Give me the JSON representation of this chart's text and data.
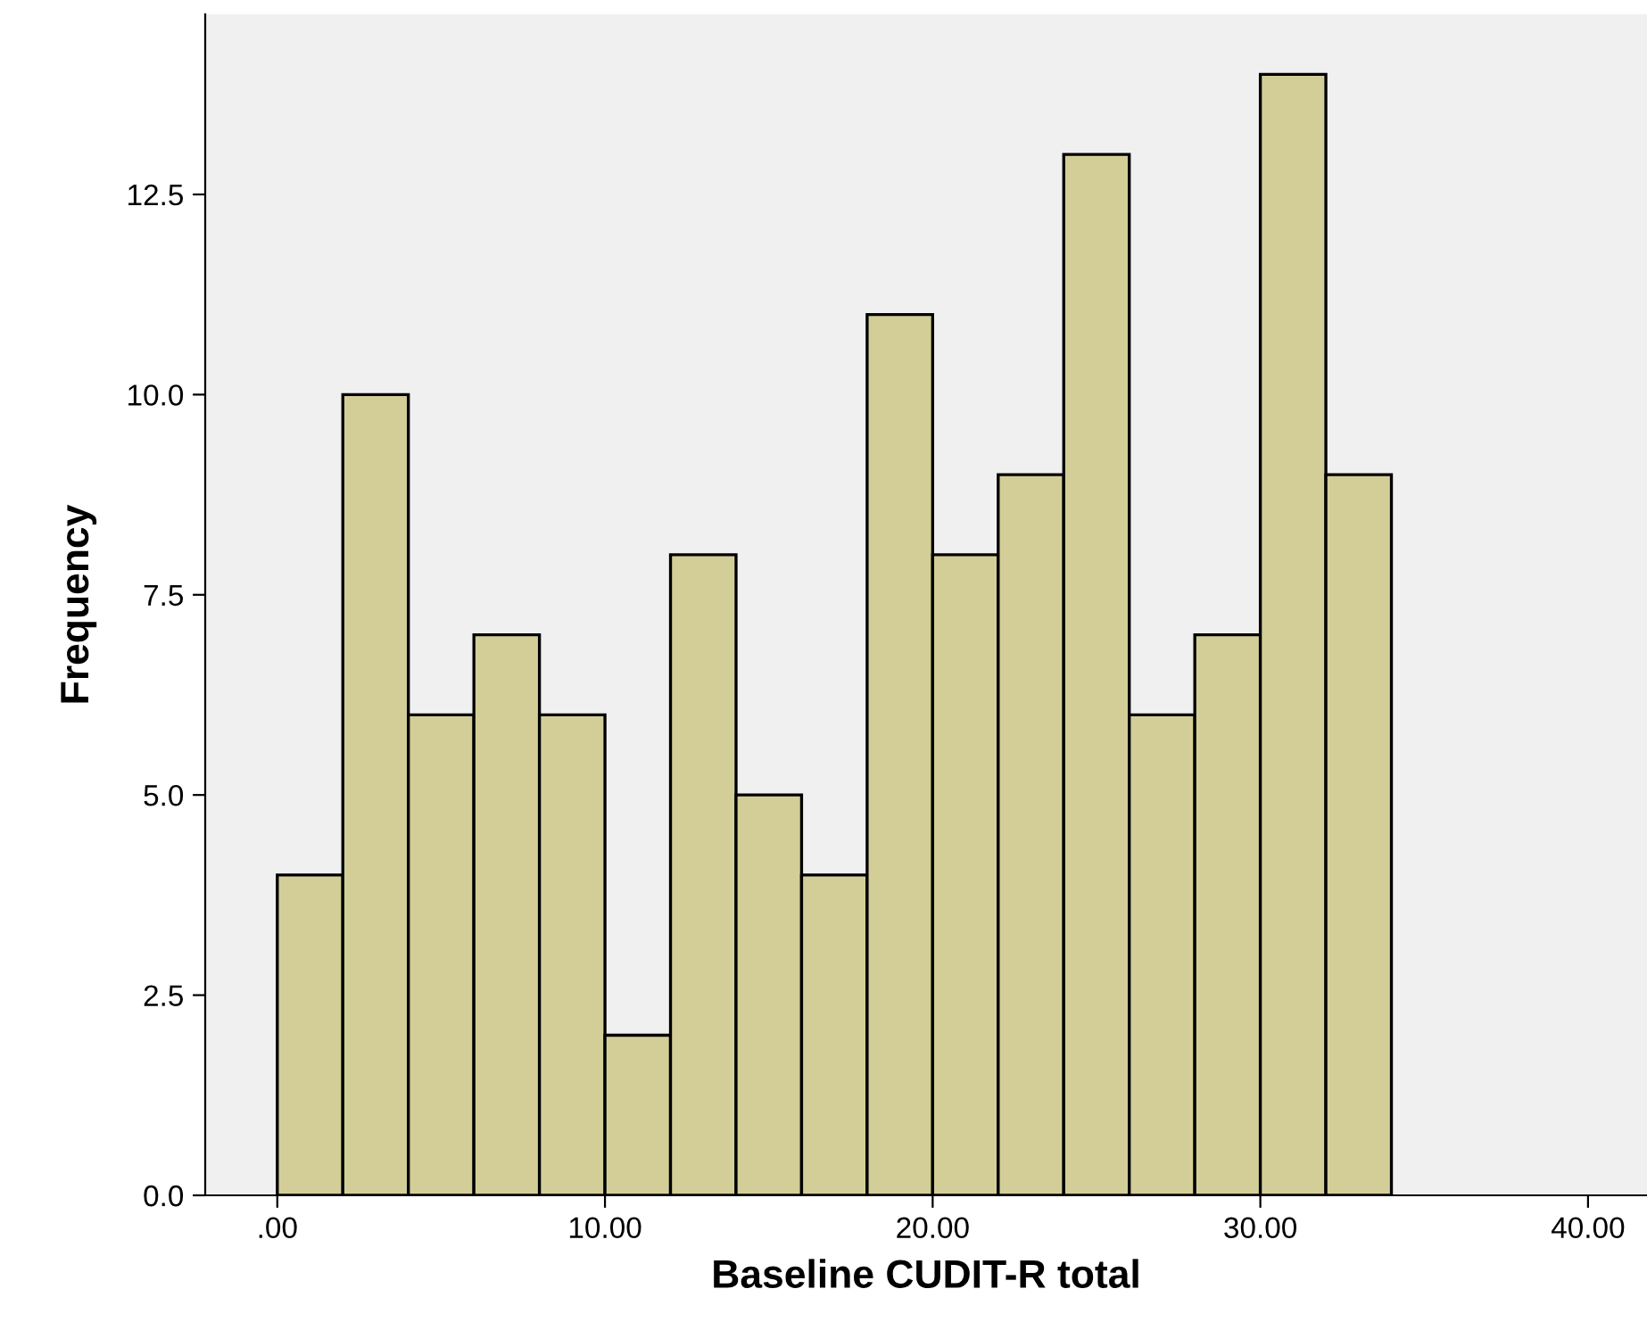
{
  "chart_data": {
    "type": "histogram",
    "xlabel": "Baseline CUDIT-R total",
    "ylabel": "Frequency",
    "bins": [
      0,
      2,
      4,
      6,
      8,
      10,
      12,
      14,
      16,
      18,
      20,
      22,
      24,
      26,
      28,
      30,
      32,
      34
    ],
    "values": [
      4,
      10,
      6,
      7,
      6,
      2,
      8,
      5,
      4,
      11,
      8,
      9,
      13,
      6,
      7,
      14,
      9
    ],
    "color": "#d3ce98",
    "xlim": [
      -2.2,
      41.8
    ],
    "ylim": [
      0,
      14.75
    ],
    "xticks": [
      {
        "value": 0,
        "label": ".00"
      },
      {
        "value": 10,
        "label": "10.00"
      },
      {
        "value": 20,
        "label": "20.00"
      },
      {
        "value": 30,
        "label": "30.00"
      },
      {
        "value": 40,
        "label": "40.00"
      }
    ],
    "yticks": [
      {
        "value": 0,
        "label": "0.0"
      },
      {
        "value": 2.5,
        "label": "2.5"
      },
      {
        "value": 5,
        "label": "5.0"
      },
      {
        "value": 7.5,
        "label": "7.5"
      },
      {
        "value": 10,
        "label": "10.0"
      },
      {
        "value": 12.5,
        "label": "12.5"
      }
    ],
    "grid": false
  }
}
